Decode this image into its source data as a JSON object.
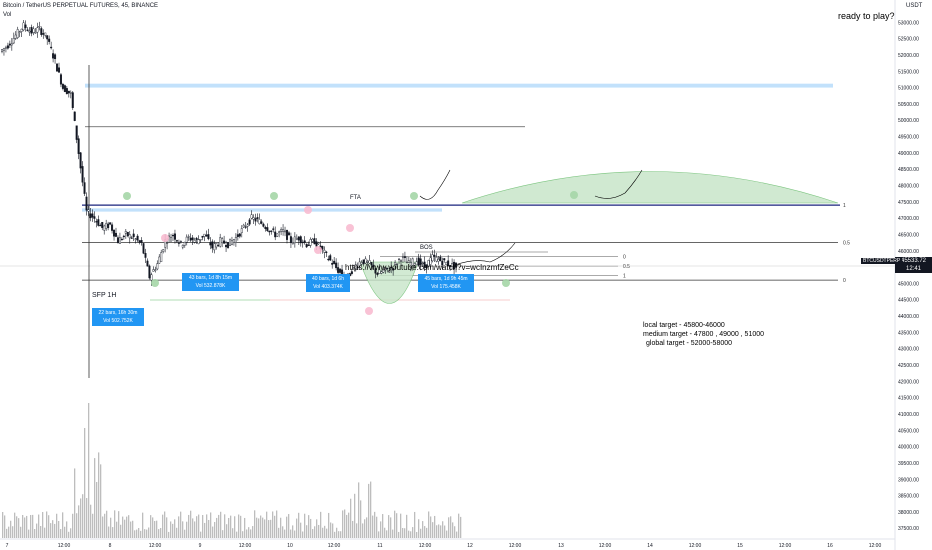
{
  "header": {
    "title": "Bitcoin / TetherUS PERPETUAL FUTURES, 45, BINANCE",
    "volume_label": "Vol",
    "currency": "USDT"
  },
  "annotations": {
    "ready": "ready to play?",
    "fta": "FTA",
    "bos": "BOS",
    "sfp": "SFP 1H",
    "url": "https://www.youtube.com/watch?v=wcInzmfZeCc",
    "local_target": "local target - 45800-46000",
    "medium_target": "medium target - 47800 , 49000 , 51000",
    "global_target": "global target - 52000-58000"
  },
  "range_boxes": [
    {
      "line1": "22 bars, 16h 30m",
      "line2": "Vol 502.752K"
    },
    {
      "line1": "43 bars, 1d 8h 15m",
      "line2": "Vol 532.878K"
    },
    {
      "line1": "40 bars, 1d 6h",
      "line2": "Vol 403.374K"
    },
    {
      "line1": "45 bars, 1d 9h 45m",
      "line2": "Vol 175.458K"
    }
  ],
  "price_tag": {
    "symbol": "BTCUSDTPERP",
    "price": "45533.72",
    "time": "12:41"
  },
  "colors": {
    "up": "#26a69a",
    "down": "#ef5350",
    "candle": "#131722",
    "resistance_band": "#bbdefb",
    "curve_fill": "#c8e6c9",
    "box": "#2196f3"
  },
  "chart_data": {
    "type": "candlestick",
    "symbol": "Bitcoin / TetherUS PERPETUAL FUTURES",
    "interval": "45",
    "exchange": "BINANCE",
    "y_axis": {
      "unit": "USDT",
      "ylim": [
        37200,
        53500
      ],
      "ticks": [
        37500,
        38000,
        38500,
        39000,
        39500,
        40000,
        40500,
        41000,
        41500,
        42000,
        42500,
        43000,
        43500,
        44000,
        44500,
        45000,
        45500,
        46000,
        46500,
        47000,
        47500,
        48000,
        48500,
        49000,
        49500,
        50000,
        50500,
        51000,
        51500,
        52000,
        52500,
        53000
      ]
    },
    "x_axis": {
      "ticks": [
        "7",
        "12:00",
        "8",
        "12:00",
        "9",
        "12:00",
        "10",
        "12:00",
        "11",
        "12:00",
        "12",
        "12:00",
        "13",
        "12:00",
        "14",
        "12:00",
        "15",
        "12:00",
        "16",
        "12:00"
      ]
    },
    "levels": [
      {
        "name": "resistance band",
        "from": 51000,
        "to": 51120
      },
      {
        "name": "upper line",
        "value": 49800
      },
      {
        "name": "FTA line",
        "value": 47400
      },
      {
        "name": "lower blue band",
        "from": 47200,
        "to": 47300
      },
      {
        "name": "mid line",
        "value": 46250
      },
      {
        "name": "range low",
        "value": 45100
      }
    ],
    "fib": [
      {
        "label": "1",
        "value": 47400
      },
      {
        "label": "0.5",
        "value": 46250
      },
      {
        "label": "0",
        "value": 45100
      }
    ],
    "small_fib": [
      {
        "label": "0",
        "value": 45820
      },
      {
        "label": "0.5",
        "value": 45530
      },
      {
        "label": "1",
        "value": 45240
      }
    ],
    "last_price": 45533.72,
    "price_path": [
      52100,
      52300,
      52600,
      52900,
      52700,
      52800,
      52500,
      51800,
      51000,
      50800,
      49000,
      47200,
      47000,
      46700,
      46800,
      46300,
      46500,
      46400,
      46200,
      45200,
      45600,
      46300,
      46500,
      46200,
      46400,
      46300,
      46500,
      46100,
      46300,
      46200,
      46400,
      46700,
      47000,
      46900,
      46700,
      46500,
      46600,
      46300,
      46400,
      46200,
      46300,
      46000,
      45700,
      45400,
      45100,
      45500,
      45700,
      45600,
      45300,
      45400,
      45500,
      45800,
      45600,
      45700,
      45500,
      45800,
      45700,
      45600,
      45500
    ],
    "volume_peak_approx": 41200
  }
}
